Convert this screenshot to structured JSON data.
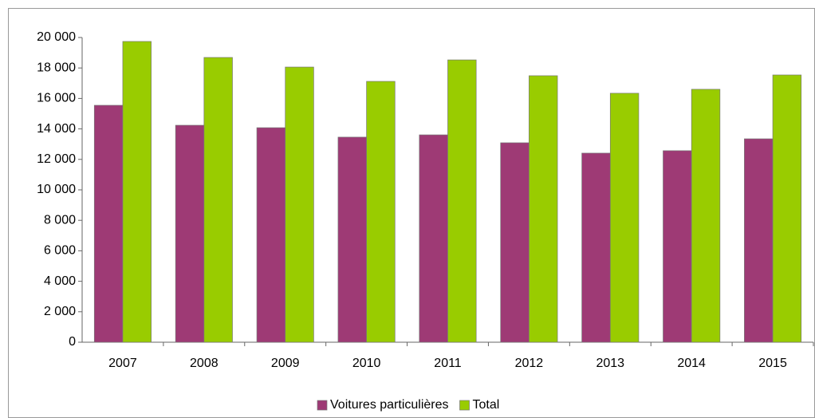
{
  "chart_data": {
    "type": "bar",
    "categories": [
      "2007",
      "2008",
      "2009",
      "2010",
      "2011",
      "2012",
      "2013",
      "2014",
      "2015"
    ],
    "series": [
      {
        "name": "Voitures particulières",
        "color": "#9e3a75",
        "values": [
          15550,
          14240,
          14080,
          13460,
          13610,
          13090,
          12410,
          12570,
          13350
        ]
      },
      {
        "name": "Total",
        "color": "#99cc00",
        "values": [
          19740,
          18690,
          18060,
          17120,
          18530,
          17490,
          16340,
          16600,
          17540
        ]
      }
    ],
    "ylim": [
      0,
      20000
    ],
    "yticks": [
      0,
      {
        "value": 2000,
        "label": "2 000"
      },
      {
        "value": 4000,
        "label": "4 000"
      },
      {
        "value": 6000,
        "label": "6 000"
      },
      {
        "value": 8000,
        "label": "8 000"
      },
      {
        "value": 10000,
        "label": "10 000"
      },
      {
        "value": 12000,
        "label": "12 000"
      },
      {
        "value": 14000,
        "label": "14 000"
      },
      {
        "value": 16000,
        "label": "16 000"
      },
      {
        "value": 18000,
        "label": "18 000"
      },
      {
        "value": 20000,
        "label": "20 000"
      }
    ],
    "legend": "bottom"
  }
}
